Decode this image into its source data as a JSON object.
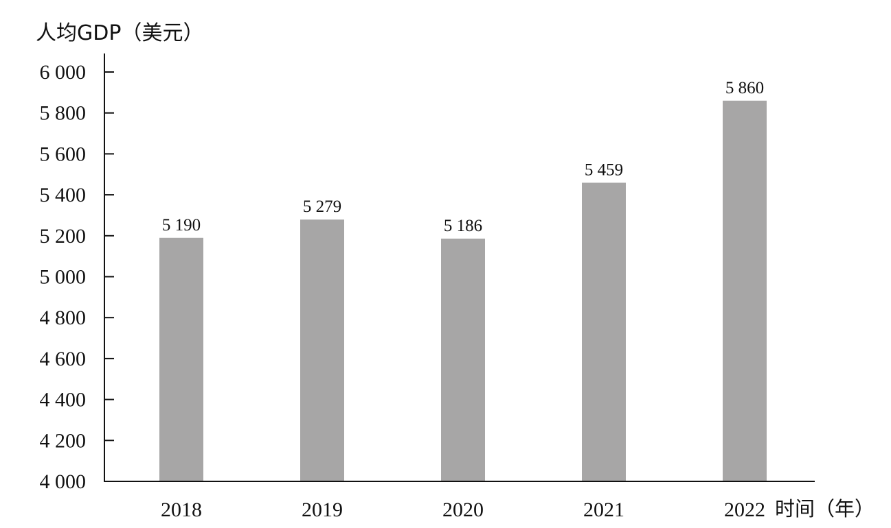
{
  "chart_data": {
    "type": "bar",
    "title": "",
    "ylabel": "人均GDP（美元）",
    "xlabel": "时间（年）",
    "categories": [
      "2018",
      "2019",
      "2020",
      "2021",
      "2022"
    ],
    "values": [
      5190,
      5279,
      5186,
      5459,
      5860
    ],
    "value_labels": [
      "5 190",
      "5 279",
      "5 186",
      "5 459",
      "5 860"
    ],
    "ylim": [
      4000,
      6000
    ],
    "yticks": [
      4000,
      4200,
      4400,
      4600,
      4800,
      5000,
      5200,
      5400,
      5600,
      5800,
      6000
    ],
    "ytick_labels": [
      "4 000",
      "4 200",
      "4 400",
      "4 600",
      "4 800",
      "5 000",
      "5 200",
      "5 400",
      "5 600",
      "5 800",
      "6 000"
    ],
    "grid": false,
    "bar_color": "#a7a6a6",
    "axis_color": "#111111"
  }
}
